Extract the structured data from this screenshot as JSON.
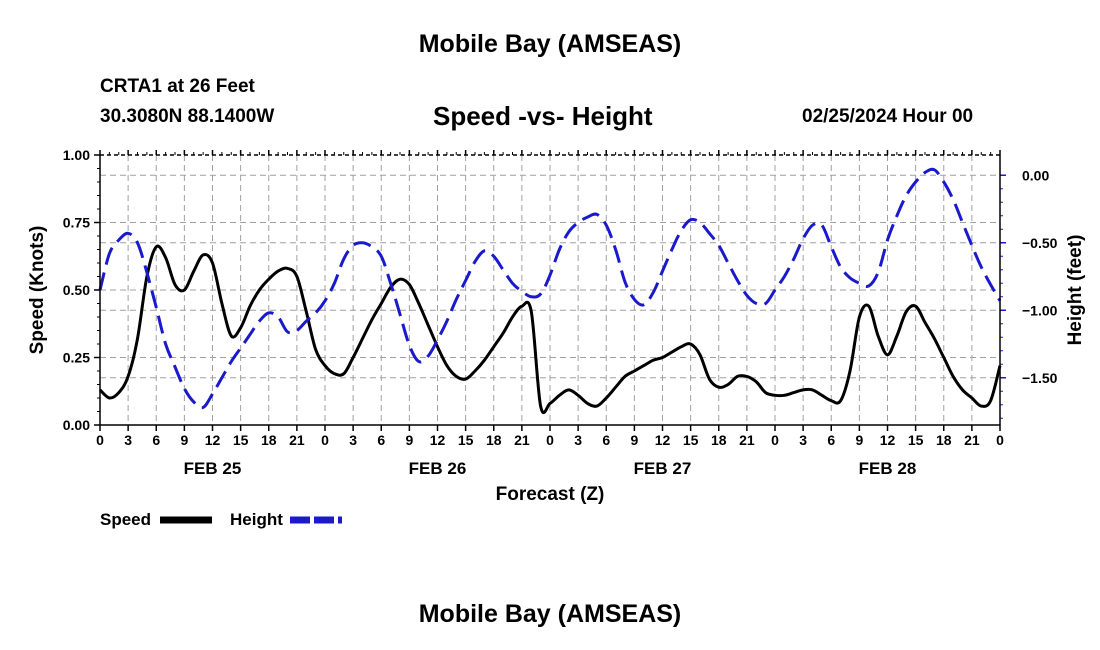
{
  "header": {
    "main_title": "Mobile Bay (AMSEAS)",
    "station": "CRTA1 at 26 Feet",
    "coords": "30.3080N  88.1400W",
    "subtitle": "Speed -vs- Height",
    "datetime": "02/25/2024 Hour 00",
    "bottom_title": "Mobile Bay (AMSEAS)"
  },
  "chart_data": {
    "type": "line",
    "title": "Speed -vs- Height",
    "xlabel": "Forecast (Z)",
    "ylabel": "Speed (Knots)",
    "y2label": "Height (feet)",
    "xlim": [
      0,
      96
    ],
    "ylim": [
      0,
      1.0
    ],
    "y2lim": [
      -1.85,
      0.15
    ],
    "yticks": [
      "0.00",
      "0.25",
      "0.50",
      "0.75",
      "1.00"
    ],
    "y2ticks": [
      "0.00",
      "−0.50",
      "−1.00",
      "−1.50"
    ],
    "xtick_labels": [
      "0",
      "3",
      "6",
      "9",
      "12",
      "15",
      "18",
      "21",
      "0",
      "3",
      "6",
      "9",
      "12",
      "15",
      "18",
      "21",
      "0",
      "3",
      "6",
      "9",
      "12",
      "15",
      "18",
      "21",
      "0",
      "3",
      "6",
      "9",
      "12",
      "15",
      "18",
      "21",
      "0"
    ],
    "day_labels": [
      "FEB 25",
      "FEB 26",
      "FEB 27",
      "FEB 28"
    ],
    "grid": true,
    "legend": {
      "speed_label": "Speed",
      "height_label": "Height"
    },
    "colors": {
      "speed": "#000000",
      "height": "#1a1acc",
      "grid": "#a0a0a0"
    },
    "series": [
      {
        "name": "Speed",
        "axis": "left",
        "x": [
          0,
          1,
          2,
          3,
          4,
          5,
          6,
          7,
          8,
          9,
          10,
          11,
          12,
          13,
          14,
          15,
          16,
          17,
          18,
          19,
          20,
          21,
          22,
          23,
          24,
          25,
          26,
          27,
          28,
          29,
          30,
          31,
          32,
          33,
          34,
          35,
          36,
          37,
          38,
          39,
          40,
          41,
          42,
          43,
          44,
          45,
          46,
          47,
          48,
          49,
          50,
          51,
          52,
          53,
          54,
          55,
          56,
          57,
          58,
          59,
          60,
          61,
          62,
          63,
          64,
          65,
          66,
          67,
          68,
          69,
          70,
          71,
          72,
          73,
          74,
          75,
          76,
          77,
          78,
          79,
          80,
          81,
          82,
          83,
          84,
          85,
          86,
          87,
          88,
          89,
          90,
          91,
          92,
          93,
          94,
          95,
          96
        ],
        "values": [
          0.13,
          0.1,
          0.12,
          0.18,
          0.32,
          0.55,
          0.66,
          0.62,
          0.52,
          0.5,
          0.57,
          0.63,
          0.6,
          0.45,
          0.33,
          0.36,
          0.44,
          0.5,
          0.54,
          0.57,
          0.58,
          0.55,
          0.42,
          0.28,
          0.22,
          0.19,
          0.19,
          0.25,
          0.32,
          0.39,
          0.45,
          0.51,
          0.54,
          0.52,
          0.45,
          0.37,
          0.29,
          0.22,
          0.18,
          0.17,
          0.2,
          0.24,
          0.29,
          0.34,
          0.4,
          0.44,
          0.42,
          0.07,
          0.08,
          0.11,
          0.13,
          0.11,
          0.08,
          0.07,
          0.1,
          0.14,
          0.18,
          0.2,
          0.22,
          0.24,
          0.25,
          0.27,
          0.29,
          0.3,
          0.26,
          0.17,
          0.14,
          0.15,
          0.18,
          0.18,
          0.16,
          0.12,
          0.11,
          0.11,
          0.12,
          0.13,
          0.13,
          0.11,
          0.09,
          0.09,
          0.2,
          0.4,
          0.44,
          0.33,
          0.26,
          0.33,
          0.42,
          0.44,
          0.38,
          0.32,
          0.25,
          0.18,
          0.13,
          0.1,
          0.07,
          0.09,
          0.22
        ]
      },
      {
        "name": "Height",
        "axis": "right",
        "x": [
          0,
          1,
          2,
          3,
          4,
          5,
          6,
          7,
          8,
          9,
          10,
          11,
          12,
          13,
          14,
          15,
          16,
          17,
          18,
          19,
          20,
          21,
          22,
          23,
          24,
          25,
          26,
          27,
          28,
          29,
          30,
          31,
          32,
          33,
          34,
          35,
          36,
          37,
          38,
          39,
          40,
          41,
          42,
          43,
          44,
          45,
          46,
          47,
          48,
          49,
          50,
          51,
          52,
          53,
          54,
          55,
          56,
          57,
          58,
          59,
          60,
          61,
          62,
          63,
          64,
          65,
          66,
          67,
          68,
          69,
          70,
          71,
          72,
          73,
          74,
          75,
          76,
          77,
          78,
          79,
          80,
          81,
          82,
          83,
          84,
          85,
          86,
          87,
          88,
          89,
          90,
          91,
          92,
          93,
          94,
          95,
          96
        ],
        "values": [
          -0.85,
          -0.58,
          -0.48,
          -0.43,
          -0.5,
          -0.72,
          -0.98,
          -1.25,
          -1.42,
          -1.58,
          -1.68,
          -1.72,
          -1.62,
          -1.5,
          -1.38,
          -1.28,
          -1.18,
          -1.08,
          -1.02,
          -1.05,
          -1.16,
          -1.15,
          -1.08,
          -1.02,
          -0.93,
          -0.8,
          -0.62,
          -0.52,
          -0.5,
          -0.53,
          -0.6,
          -0.8,
          -1.03,
          -1.26,
          -1.38,
          -1.34,
          -1.22,
          -1.08,
          -0.92,
          -0.78,
          -0.64,
          -0.56,
          -0.6,
          -0.7,
          -0.8,
          -0.86,
          -0.9,
          -0.88,
          -0.74,
          -0.55,
          -0.42,
          -0.35,
          -0.31,
          -0.29,
          -0.37,
          -0.55,
          -0.79,
          -0.92,
          -0.96,
          -0.87,
          -0.71,
          -0.55,
          -0.41,
          -0.33,
          -0.35,
          -0.43,
          -0.52,
          -0.65,
          -0.78,
          -0.89,
          -0.95,
          -0.95,
          -0.85,
          -0.75,
          -0.62,
          -0.47,
          -0.37,
          -0.37,
          -0.53,
          -0.68,
          -0.76,
          -0.8,
          -0.82,
          -0.72,
          -0.48,
          -0.3,
          -0.15,
          -0.05,
          0.02,
          0.04,
          -0.05,
          -0.18,
          -0.35,
          -0.52,
          -0.68,
          -0.81,
          -0.93
        ]
      }
    ]
  }
}
